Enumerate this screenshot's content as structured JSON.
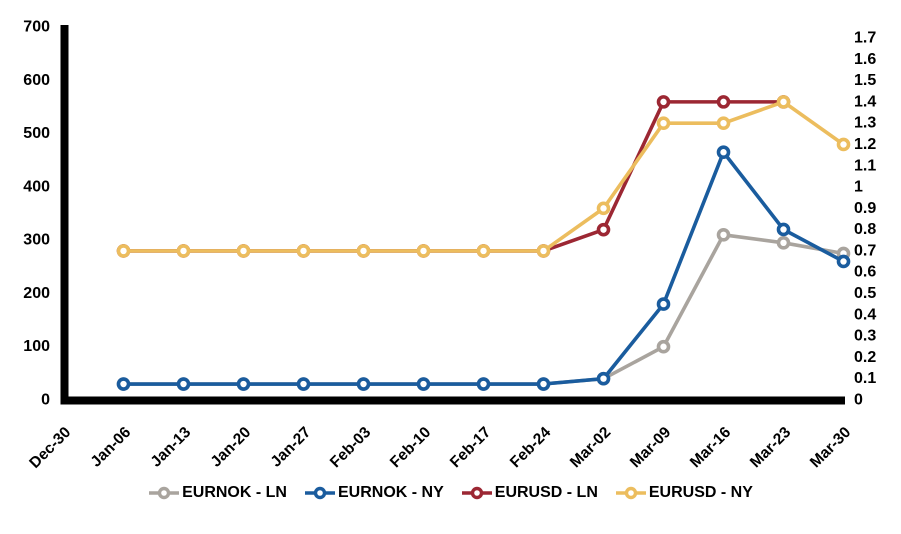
{
  "chart_data": {
    "type": "line",
    "title": "",
    "background": "#FFFFFF",
    "axis_color": "#000000",
    "grid": false,
    "legend_position": "bottom",
    "categories": [
      "Dec-30",
      "Jan-06",
      "Jan-13",
      "Jan-20",
      "Jan-27",
      "Feb-03",
      "Feb-10",
      "Feb-17",
      "Feb-24",
      "Mar-02",
      "Mar-09",
      "Mar-16",
      "Mar-23",
      "Mar-30"
    ],
    "left_axis": {
      "min": 0,
      "max": 700,
      "tick_labels": [
        "700",
        "600",
        "500",
        "400",
        "300",
        "200",
        "100",
        "0"
      ]
    },
    "right_axis": {
      "min": 0,
      "max": 1.7,
      "tick_labels": [
        "1.7",
        "1.6",
        "1.5",
        "1.4",
        "1.3",
        "1.2",
        "1.1",
        "1",
        "0.9",
        "0.8",
        "0.7",
        "0.6",
        "0.5",
        "0.4",
        "0.3",
        "0.2",
        "0.1",
        "0"
      ]
    },
    "series": [
      {
        "name": "EURNOK - LN",
        "color": "#A9A49E",
        "axis": "left",
        "values": [
          null,
          30,
          30,
          30,
          30,
          30,
          30,
          30,
          30,
          40,
          100,
          310,
          295,
          275
        ]
      },
      {
        "name": "EURNOK - NY",
        "color": "#1A5C9E",
        "axis": "left",
        "values": [
          null,
          30,
          30,
          30,
          30,
          30,
          30,
          30,
          30,
          40,
          180,
          465,
          320,
          260
        ]
      },
      {
        "name": "EURUSD - LN",
        "color": "#9C2733",
        "axis": "right",
        "values": [
          null,
          0.7,
          0.7,
          0.7,
          0.7,
          0.7,
          0.7,
          0.7,
          0.7,
          0.8,
          1.4,
          1.4,
          1.4,
          null
        ]
      },
      {
        "name": "EURUSD - NY",
        "color": "#ECBD5E",
        "axis": "right",
        "values": [
          null,
          0.7,
          0.7,
          0.7,
          0.7,
          0.7,
          0.7,
          0.7,
          0.7,
          0.9,
          1.3,
          1.3,
          1.4,
          1.2
        ]
      }
    ]
  }
}
